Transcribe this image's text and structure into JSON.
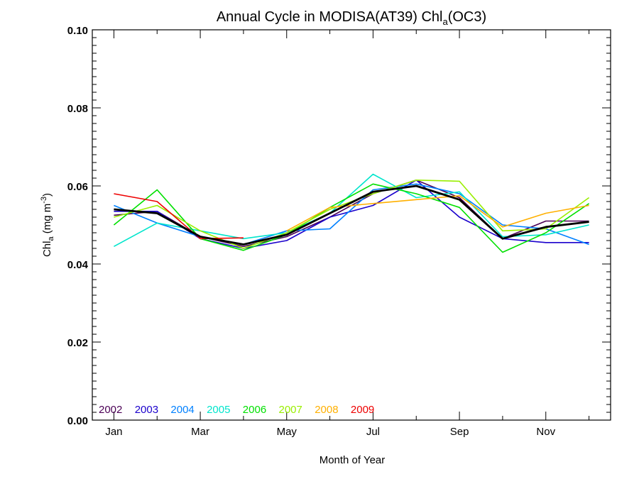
{
  "chart_data": {
    "type": "line",
    "title": {
      "prefix": "Annual Cycle in MODISA(AT39) Chl",
      "sub": "a",
      "suffix": "(OC3)"
    },
    "ylabel": {
      "prefix": "Chl",
      "sub": "a",
      "mid": " (mg m",
      "sup": "-3",
      "suffix": ")"
    },
    "xlabel": "Month of Year",
    "x_tick_labels": [
      "Jan",
      "Mar",
      "May",
      "Jul",
      "Sep",
      "Nov"
    ],
    "y_tick_labels": [
      "0.00",
      "0.02",
      "0.04",
      "0.06",
      "0.08",
      "0.10"
    ],
    "xlim": [
      0.5,
      12.5
    ],
    "ylim": [
      0,
      0.1
    ],
    "months": [
      1,
      2,
      3,
      4,
      5,
      6,
      7,
      8,
      9,
      10,
      11,
      12
    ],
    "series": [
      {
        "name": "2002",
        "color": "#4b0055",
        "values": [
          0.0525,
          0.0535,
          0.047,
          0.0445,
          0.047,
          0.052,
          0.058,
          0.0615,
          0.057,
          0.0465,
          0.051,
          0.051
        ]
      },
      {
        "name": "2003",
        "color": "#1a00cc",
        "values": [
          0.0535,
          0.0535,
          0.0465,
          0.044,
          0.046,
          0.052,
          0.055,
          0.0615,
          0.052,
          0.0465,
          0.0455,
          0.0455
        ]
      },
      {
        "name": "2004",
        "color": "#0080ff",
        "values": [
          0.055,
          0.0505,
          0.047,
          0.045,
          0.0485,
          0.049,
          0.059,
          0.0605,
          0.058,
          0.05,
          0.049,
          0.045
        ]
      },
      {
        "name": "2005",
        "color": "#00e5cc",
        "values": [
          0.0445,
          0.0505,
          0.0485,
          0.0465,
          0.048,
          0.053,
          0.063,
          0.057,
          0.0585,
          0.047,
          0.0475,
          0.05
        ]
      },
      {
        "name": "2006",
        "color": "#00e000",
        "values": [
          0.05,
          0.059,
          0.0465,
          0.0435,
          0.0475,
          0.0545,
          0.0605,
          0.058,
          0.0545,
          0.043,
          0.048,
          0.0555
        ]
      },
      {
        "name": "2007",
        "color": "#99ee00",
        "values": [
          0.052,
          0.055,
          0.0485,
          0.044,
          0.048,
          0.054,
          0.058,
          0.0615,
          0.0612,
          0.0485,
          0.049,
          0.057
        ]
      },
      {
        "name": "2008",
        "color": "#ffb000",
        "values": [
          null,
          null,
          null,
          null,
          0.0485,
          0.0545,
          0.0555,
          0.0565,
          0.0575,
          0.0495,
          0.053,
          0.055
        ]
      },
      {
        "name": "2009",
        "color": "#ee0000",
        "values": [
          0.058,
          0.056,
          0.0465,
          0.0467,
          null,
          null,
          null,
          null,
          null,
          null,
          null,
          null
        ]
      },
      {
        "name": "",
        "color": "#000000",
        "values": [
          0.054,
          0.053,
          0.047,
          0.045,
          0.0475,
          0.053,
          0.0585,
          0.06,
          0.0565,
          0.0465,
          0.0495,
          0.0508
        ]
      }
    ],
    "legend_placement": "bottom-left inside plot",
    "grid": false
  }
}
